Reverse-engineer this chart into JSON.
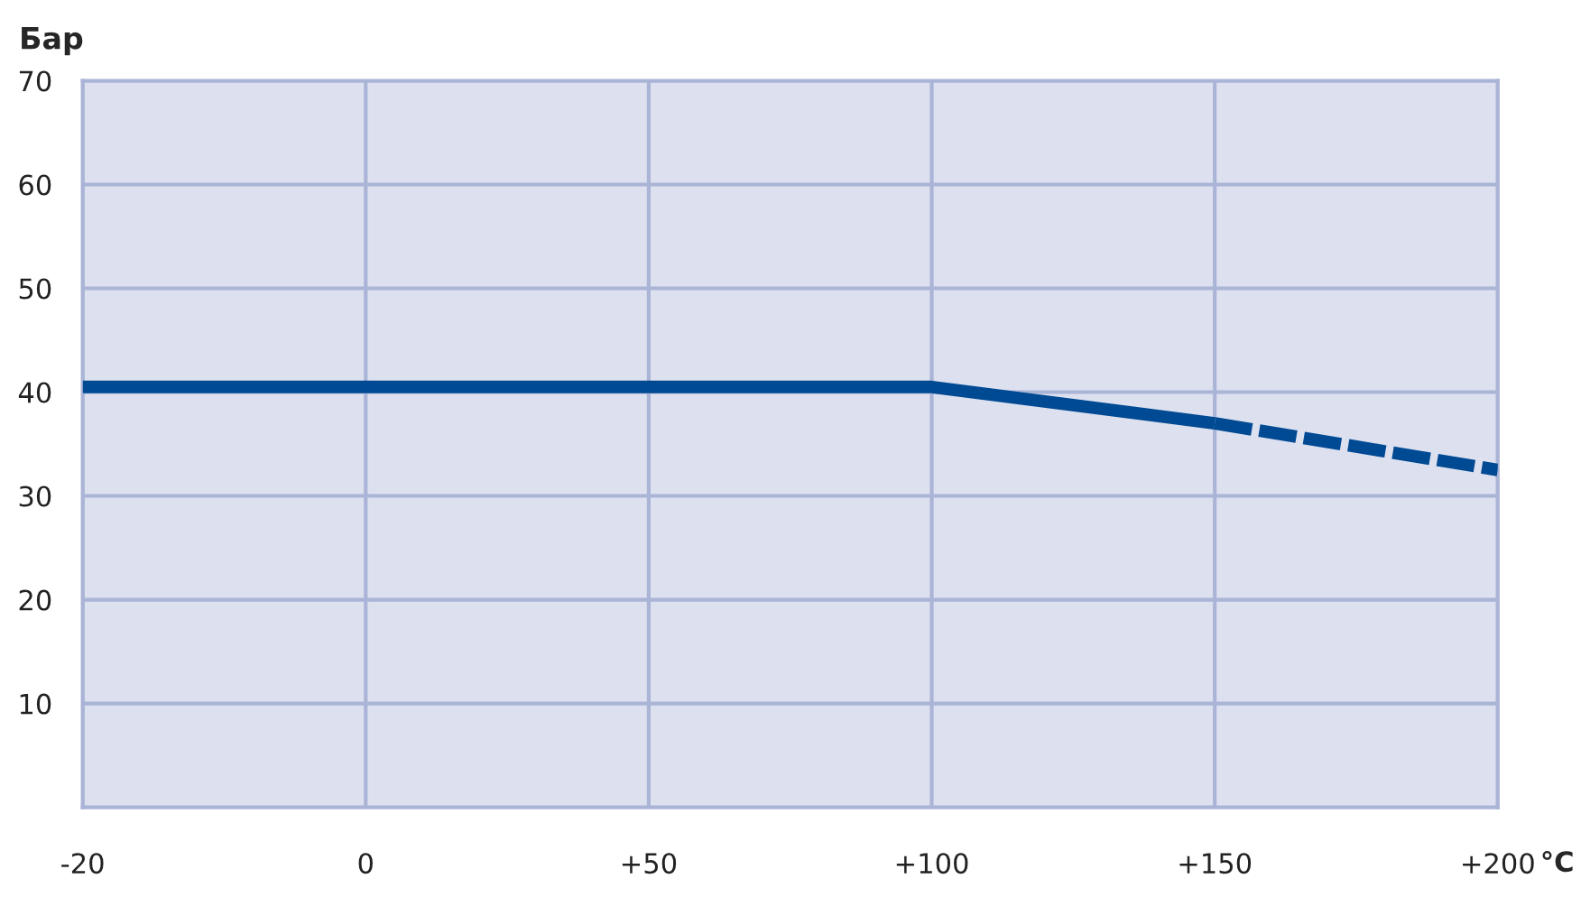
{
  "chart_data": {
    "type": "line",
    "ylabel": "Бар",
    "xlabel": "°C",
    "categories": [
      "-20",
      "0",
      "+50",
      "+100",
      "+150",
      "+200"
    ],
    "series": [
      {
        "color": "#004a94",
        "line_style": "solid",
        "values": [
          40.5,
          40.5,
          40.5,
          40.5,
          37,
          null
        ]
      },
      {
        "color": "#004a94",
        "line_style": "dashed",
        "values": [
          null,
          null,
          null,
          null,
          37,
          32.5
        ]
      }
    ],
    "ylim": [
      0,
      70
    ],
    "yticks": [
      10,
      20,
      30,
      40,
      50,
      60,
      70
    ],
    "grid": true,
    "legend": false,
    "marker": "none"
  }
}
